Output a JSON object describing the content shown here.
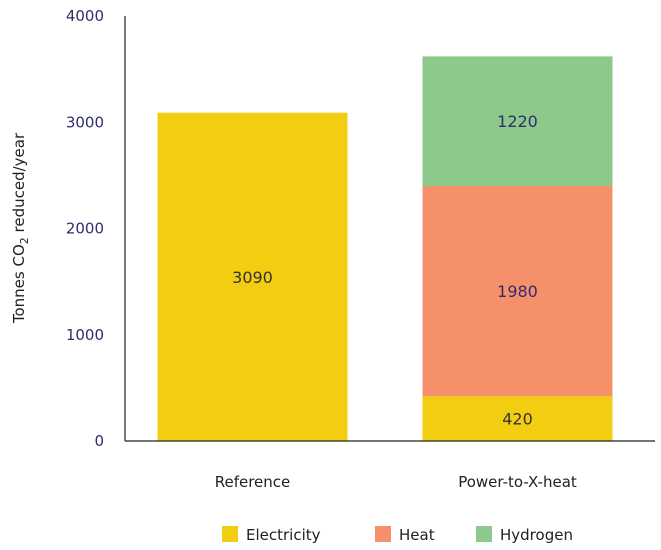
{
  "chart_data": {
    "type": "bar",
    "stacked": true,
    "categories": [
      "Reference",
      "Power-to-X-heat"
    ],
    "series": [
      {
        "name": "Electricity",
        "values": [
          3090,
          420
        ],
        "color": "#f2cd11",
        "label_color": "#333333"
      },
      {
        "name": "Heat",
        "values": [
          0,
          1980
        ],
        "color": "#f5906b",
        "label_color": "#2e2f6b"
      },
      {
        "name": "Hydrogen",
        "values": [
          0,
          1220
        ],
        "color": "#8dc98b",
        "label_color": "#2e2f6b"
      }
    ],
    "ylabel_parts": [
      "Tonnes CO",
      "2",
      " reduced/year"
    ],
    "ylim": [
      0,
      4000
    ],
    "yticks": [
      "0",
      "1000",
      "2000",
      "3000",
      "4000"
    ],
    "grid": false,
    "legend_position": "bottom"
  }
}
